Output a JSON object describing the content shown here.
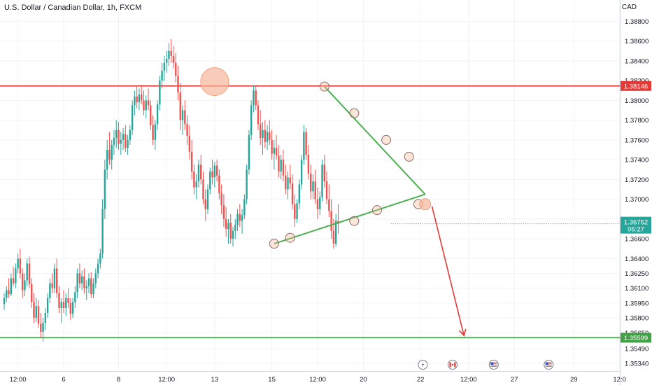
{
  "header": {
    "title": "U.S. Dollar / Canadian Dollar, 1h, FXCM",
    "currency": "CAD"
  },
  "colors": {
    "up": "#26a69a",
    "down": "#ef5350",
    "resistance": "#e53935",
    "support": "#43a047",
    "triangle": "#4caf50",
    "arrow": "#e53935",
    "circle_fill": "#f7b79b",
    "price_badge": "#26a69a"
  },
  "chart_data": {
    "type": "candlestick",
    "symbol": "USD/CAD",
    "timeframe": "1h",
    "ylim": [
      1.3522,
      1.3898
    ],
    "y_ticks": [
      "1.38800",
      "1.38600",
      "1.38400",
      "1.38200",
      "1.38000",
      "1.37800",
      "1.37600",
      "1.37400",
      "1.37200",
      "1.37000",
      "1.36800",
      "1.36600",
      "1.36400",
      "1.36250",
      "1.36100",
      "1.35950",
      "1.35800",
      "1.35650",
      "1.35490",
      "1.35340"
    ],
    "x_ticks": [
      "12:00",
      "6",
      "8",
      "12:00",
      "13",
      "15",
      "12:00",
      "20",
      "22",
      "12:00",
      "27",
      "29",
      "12:0"
    ],
    "x_tick_index": [
      6,
      26,
      50,
      71,
      92,
      117,
      137,
      157,
      182,
      203,
      223,
      249,
      269
    ],
    "last_bar_index": 169,
    "candles": [
      [
        1.3594,
        1.3605,
        1.3588,
        1.36
      ],
      [
        1.36,
        1.3612,
        1.3596,
        1.3608
      ],
      [
        1.3608,
        1.362,
        1.36,
        1.3604
      ],
      [
        1.3604,
        1.3625,
        1.3602,
        1.362
      ],
      [
        1.362,
        1.3632,
        1.3612,
        1.3615
      ],
      [
        1.3615,
        1.3635,
        1.361,
        1.363
      ],
      [
        1.363,
        1.3645,
        1.3625,
        1.364
      ],
      [
        1.364,
        1.365,
        1.362,
        1.3625
      ],
      [
        1.3625,
        1.363,
        1.36,
        1.3608
      ],
      [
        1.3608,
        1.3625,
        1.3602,
        1.3618
      ],
      [
        1.3618,
        1.364,
        1.3612,
        1.3635
      ],
      [
        1.3635,
        1.3642,
        1.361,
        1.3614
      ],
      [
        1.3614,
        1.362,
        1.359,
        1.3596
      ],
      [
        1.3596,
        1.3605,
        1.3575,
        1.358
      ],
      [
        1.358,
        1.36,
        1.3576,
        1.3592
      ],
      [
        1.3592,
        1.3598,
        1.357,
        1.3574
      ],
      [
        1.3574,
        1.3585,
        1.356,
        1.3566
      ],
      [
        1.3566,
        1.358,
        1.3556,
        1.3575
      ],
      [
        1.3575,
        1.359,
        1.3568,
        1.3585
      ],
      [
        1.3585,
        1.3605,
        1.358,
        1.36
      ],
      [
        1.36,
        1.362,
        1.3595,
        1.3615
      ],
      [
        1.3615,
        1.3625,
        1.3605,
        1.361
      ],
      [
        1.361,
        1.3635,
        1.3605,
        1.363
      ],
      [
        1.363,
        1.364,
        1.36,
        1.3605
      ],
      [
        1.3605,
        1.3612,
        1.3585,
        1.359
      ],
      [
        1.359,
        1.36,
        1.3575,
        1.3596
      ],
      [
        1.3596,
        1.3608,
        1.3585,
        1.359
      ],
      [
        1.359,
        1.3605,
        1.3582,
        1.36
      ],
      [
        1.36,
        1.361,
        1.359,
        1.3595
      ],
      [
        1.3595,
        1.36,
        1.3578,
        1.3584
      ],
      [
        1.3584,
        1.36,
        1.358,
        1.3596
      ],
      [
        1.3596,
        1.3612,
        1.359,
        1.3606
      ],
      [
        1.3606,
        1.363,
        1.36,
        1.3625
      ],
      [
        1.3625,
        1.3635,
        1.361,
        1.3615
      ],
      [
        1.3615,
        1.3628,
        1.3608,
        1.3622
      ],
      [
        1.3622,
        1.363,
        1.3605,
        1.361
      ],
      [
        1.361,
        1.3618,
        1.3598,
        1.3612
      ],
      [
        1.3612,
        1.3625,
        1.3605,
        1.362
      ],
      [
        1.362,
        1.3626,
        1.36,
        1.3604
      ],
      [
        1.3604,
        1.362,
        1.36,
        1.3615
      ],
      [
        1.3615,
        1.363,
        1.361,
        1.3625
      ],
      [
        1.3625,
        1.364,
        1.362,
        1.3635
      ],
      [
        1.3635,
        1.365,
        1.363,
        1.3645
      ],
      [
        1.3645,
        1.37,
        1.364,
        1.369
      ],
      [
        1.369,
        1.374,
        1.368,
        1.373
      ],
      [
        1.373,
        1.376,
        1.372,
        1.375
      ],
      [
        1.375,
        1.3768,
        1.3735,
        1.374
      ],
      [
        1.374,
        1.376,
        1.373,
        1.3755
      ],
      [
        1.3755,
        1.377,
        1.3745,
        1.3762
      ],
      [
        1.3762,
        1.378,
        1.3752,
        1.377
      ],
      [
        1.377,
        1.3778,
        1.375,
        1.3756
      ],
      [
        1.3756,
        1.3768,
        1.3745,
        1.376
      ],
      [
        1.376,
        1.3772,
        1.375,
        1.3766
      ],
      [
        1.3766,
        1.3775,
        1.3748,
        1.3752
      ],
      [
        1.3752,
        1.3765,
        1.3745,
        1.376
      ],
      [
        1.376,
        1.3775,
        1.3755,
        1.377
      ],
      [
        1.377,
        1.38,
        1.3765,
        1.3795
      ],
      [
        1.3795,
        1.381,
        1.3785,
        1.3804
      ],
      [
        1.3804,
        1.3815,
        1.3792,
        1.3798
      ],
      [
        1.3798,
        1.3812,
        1.379,
        1.3806
      ],
      [
        1.3806,
        1.3816,
        1.3796,
        1.38
      ],
      [
        1.38,
        1.381,
        1.3785,
        1.379
      ],
      [
        1.379,
        1.3805,
        1.3782,
        1.38
      ],
      [
        1.38,
        1.3812,
        1.379,
        1.3795
      ],
      [
        1.3795,
        1.38,
        1.377,
        1.3775
      ],
      [
        1.3775,
        1.3785,
        1.3755,
        1.376
      ],
      [
        1.376,
        1.378,
        1.375,
        1.3776
      ],
      [
        1.3776,
        1.38,
        1.377,
        1.3796
      ],
      [
        1.3796,
        1.3825,
        1.379,
        1.382
      ],
      [
        1.382,
        1.3838,
        1.3812,
        1.383
      ],
      [
        1.383,
        1.3845,
        1.382,
        1.3838
      ],
      [
        1.3838,
        1.385,
        1.3828,
        1.3842
      ],
      [
        1.3842,
        1.3858,
        1.3835,
        1.385
      ],
      [
        1.385,
        1.3862,
        1.3838,
        1.3845
      ],
      [
        1.3845,
        1.3855,
        1.3832,
        1.3838
      ],
      [
        1.3838,
        1.3848,
        1.3818,
        1.3825
      ],
      [
        1.3825,
        1.3835,
        1.38,
        1.3808
      ],
      [
        1.3808,
        1.3818,
        1.377,
        1.378
      ],
      [
        1.378,
        1.3795,
        1.3765,
        1.379
      ],
      [
        1.379,
        1.38,
        1.377,
        1.3776
      ],
      [
        1.3776,
        1.3785,
        1.3755,
        1.3764
      ],
      [
        1.3764,
        1.3775,
        1.374,
        1.3748
      ],
      [
        1.3748,
        1.376,
        1.372,
        1.3728
      ],
      [
        1.3728,
        1.3735,
        1.3705,
        1.3712
      ],
      [
        1.3712,
        1.3725,
        1.37,
        1.3718
      ],
      [
        1.3718,
        1.374,
        1.3712,
        1.3735
      ],
      [
        1.3735,
        1.3745,
        1.3715,
        1.372
      ],
      [
        1.372,
        1.3728,
        1.3695,
        1.37
      ],
      [
        1.37,
        1.371,
        1.3678,
        1.369
      ],
      [
        1.369,
        1.3715,
        1.3685,
        1.371
      ],
      [
        1.371,
        1.3732,
        1.3705,
        1.3728
      ],
      [
        1.3728,
        1.374,
        1.3715,
        1.3722
      ],
      [
        1.3722,
        1.3738,
        1.3712,
        1.3734
      ],
      [
        1.3734,
        1.374,
        1.3718,
        1.3724
      ],
      [
        1.3724,
        1.373,
        1.37,
        1.3706
      ],
      [
        1.3706,
        1.3715,
        1.3685,
        1.3694
      ],
      [
        1.3694,
        1.3705,
        1.3672,
        1.368
      ],
      [
        1.368,
        1.3692,
        1.3662,
        1.367
      ],
      [
        1.367,
        1.368,
        1.3655,
        1.3676
      ],
      [
        1.3676,
        1.3685,
        1.3655,
        1.366
      ],
      [
        1.366,
        1.3672,
        1.3652,
        1.3668
      ],
      [
        1.3668,
        1.368,
        1.366,
        1.3674
      ],
      [
        1.3674,
        1.369,
        1.3668,
        1.3685
      ],
      [
        1.3685,
        1.3695,
        1.3672,
        1.3678
      ],
      [
        1.3678,
        1.369,
        1.3665,
        1.3684
      ],
      [
        1.3684,
        1.3705,
        1.368,
        1.37
      ],
      [
        1.37,
        1.3735,
        1.3695,
        1.373
      ],
      [
        1.373,
        1.377,
        1.3725,
        1.3765
      ],
      [
        1.3765,
        1.38,
        1.376,
        1.3795
      ],
      [
        1.3795,
        1.3815,
        1.3788,
        1.381
      ],
      [
        1.381,
        1.3815,
        1.379,
        1.3795
      ],
      [
        1.3795,
        1.38,
        1.377,
        1.3776
      ],
      [
        1.3776,
        1.379,
        1.3755,
        1.3762
      ],
      [
        1.3762,
        1.3778,
        1.3745,
        1.377
      ],
      [
        1.377,
        1.378,
        1.3752,
        1.3758
      ],
      [
        1.3758,
        1.3775,
        1.375,
        1.3768
      ],
      [
        1.3768,
        1.378,
        1.3755,
        1.376
      ],
      [
        1.376,
        1.377,
        1.374,
        1.3746
      ],
      [
        1.3746,
        1.376,
        1.373,
        1.3752
      ],
      [
        1.3752,
        1.3765,
        1.374,
        1.3744
      ],
      [
        1.3744,
        1.3755,
        1.3722,
        1.3728
      ],
      [
        1.3728,
        1.3745,
        1.372,
        1.374
      ],
      [
        1.374,
        1.375,
        1.3718,
        1.3724
      ],
      [
        1.3724,
        1.3735,
        1.3705,
        1.371
      ],
      [
        1.371,
        1.3728,
        1.37,
        1.3722
      ],
      [
        1.3722,
        1.3735,
        1.371,
        1.3716
      ],
      [
        1.3716,
        1.3725,
        1.369,
        1.3695
      ],
      [
        1.3695,
        1.3705,
        1.3672,
        1.368
      ],
      [
        1.368,
        1.37,
        1.3676,
        1.3696
      ],
      [
        1.3696,
        1.372,
        1.369,
        1.3715
      ],
      [
        1.3715,
        1.3745,
        1.371,
        1.374
      ],
      [
        1.374,
        1.3775,
        1.3735,
        1.3768
      ],
      [
        1.3768,
        1.3772,
        1.374,
        1.3745
      ],
      [
        1.3745,
        1.3755,
        1.372,
        1.3726
      ],
      [
        1.3726,
        1.3735,
        1.37,
        1.3708
      ],
      [
        1.3708,
        1.3725,
        1.37,
        1.3718
      ],
      [
        1.3718,
        1.373,
        1.3695,
        1.37
      ],
      [
        1.37,
        1.3712,
        1.368,
        1.369
      ],
      [
        1.369,
        1.3708,
        1.3684,
        1.3702
      ],
      [
        1.3702,
        1.374,
        1.3698,
        1.3735
      ],
      [
        1.3735,
        1.3745,
        1.3712,
        1.3718
      ],
      [
        1.3718,
        1.3728,
        1.3695,
        1.37
      ],
      [
        1.37,
        1.3715,
        1.3682,
        1.3688
      ],
      [
        1.3688,
        1.37,
        1.366,
        1.3668
      ],
      [
        1.3668,
        1.368,
        1.365,
        1.3655
      ],
      [
        1.3655,
        1.3685,
        1.3652,
        1.3678
      ],
      [
        1.3678,
        1.3695,
        1.3665,
        1.3675
      ]
    ],
    "levels": [
      {
        "price": 1.38146,
        "label": "1.38146"
      },
      {
        "price": 1.35599,
        "label": "1.35599"
      }
    ],
    "current_price": {
      "price": 1.36752,
      "label": "1.36752",
      "countdown": "06:27"
    },
    "triangle": {
      "upper": {
        "start_index": 140,
        "start_price": 1.3814,
        "end_index": 184,
        "end_price": 1.3705
      },
      "lower": {
        "start_index": 118,
        "start_price": 1.3655,
        "end_index": 184,
        "end_price": 1.3705
      }
    },
    "touch_points": [
      {
        "index": 140,
        "price": 1.3814
      },
      {
        "index": 153,
        "price": 1.3787
      },
      {
        "index": 167,
        "price": 1.376
      },
      {
        "index": 177,
        "price": 1.3743
      },
      {
        "index": 118,
        "price": 1.3655
      },
      {
        "index": 125,
        "price": 1.3661
      },
      {
        "index": 153,
        "price": 1.3678
      },
      {
        "index": 163,
        "price": 1.3689
      },
      {
        "index": 181,
        "price": 1.3695
      }
    ],
    "highlights": [
      {
        "index": 92,
        "price": 1.3819
      },
      {
        "index": 184,
        "price": 1.3695
      }
    ],
    "forecast_arrow": {
      "start_index": 187,
      "start_price": 1.3693,
      "end_index": 201,
      "end_price": 1.3562
    },
    "event_icons": [
      {
        "index": 183,
        "icon": "lightning-icon"
      },
      {
        "index": 196,
        "icon": "flag-icon-ca"
      },
      {
        "index": 214,
        "icon": "flag-icon-us"
      },
      {
        "index": 238,
        "icon": "flag-icon-us"
      }
    ]
  }
}
